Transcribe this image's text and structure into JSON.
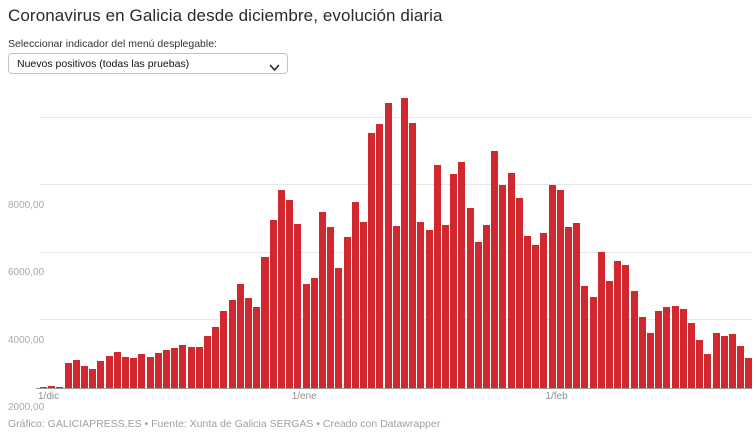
{
  "header": {
    "title": "Coronavirus en Galicia desde diciembre, evolución diaria",
    "selector_label": "Seleccionar indicador del menú desplegable:",
    "dropdown_value": "Nuevos positivos (todas las pruebas)"
  },
  "chart_data": {
    "type": "bar",
    "title": "Coronavirus en Galicia desde diciembre, evolución diaria",
    "series_name": "Nuevos positivos (todas las pruebas)",
    "bar_color": "#d0282e",
    "grid": true,
    "ylim": [
      0,
      8880
    ],
    "y_ticks": [
      {
        "value": 2000,
        "label": "2000,00"
      },
      {
        "value": 4000,
        "label": "4000,00"
      },
      {
        "value": 6000,
        "label": "6000,00"
      },
      {
        "value": 8000,
        "label": "8000,00"
      }
    ],
    "x_ticks": [
      {
        "index": 0,
        "label": "1/dic"
      },
      {
        "index": 31,
        "label": "1/ene"
      },
      {
        "index": 62,
        "label": "1/feb"
      }
    ],
    "values": [
      40,
      65,
      30,
      750,
      830,
      660,
      570,
      800,
      940,
      1080,
      930,
      880,
      1010,
      910,
      1050,
      1125,
      1175,
      1275,
      1205,
      1225,
      1540,
      1810,
      2290,
      2620,
      3090,
      2660,
      2410,
      3870,
      4970,
      5870,
      5560,
      4850,
      3080,
      3260,
      5220,
      4780,
      3560,
      4470,
      5520,
      4910,
      7550,
      7830,
      8450,
      4800,
      8600,
      7850,
      4915,
      4690,
      6610,
      4830,
      6350,
      6690,
      5320,
      4310,
      4820,
      7010,
      6010,
      6380,
      5620,
      4500,
      4220,
      4590,
      6000,
      5870,
      4780,
      4900,
      3030,
      2700,
      4040,
      3170,
      3770,
      3640,
      2860,
      2090,
      1620,
      2280,
      2410,
      2430,
      2330,
      1920,
      1420,
      1000,
      1640,
      1540,
      1600,
      1240,
      880
    ]
  },
  "footer": {
    "credit": "Gráfico: GALICIAPRESS.ES • Fuente: Xunta de Galicia SERGAS • Creado con Datawrapper"
  }
}
